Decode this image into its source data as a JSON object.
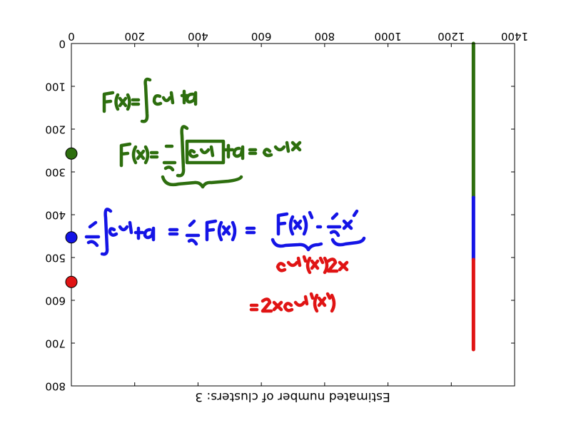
{
  "chart_data": {
    "type": "scatter",
    "title": "",
    "xlabel": "Estimated number of clusters: 3",
    "xlim": [
      0,
      1400
    ],
    "ylim": [
      800,
      0
    ],
    "y_inverted": true,
    "x_axis_position": "top",
    "x_ticks": [
      "0",
      "200",
      "400",
      "600",
      "800",
      "1000",
      "1200",
      "1400"
    ],
    "y_ticks": [
      "0",
      "100",
      "200",
      "300",
      "400",
      "500",
      "600",
      "700",
      "800"
    ],
    "grid": false,
    "legend": "none",
    "colors": {
      "green": "#2d6e0e",
      "blue": "#1414e6",
      "red": "#e01414"
    },
    "cluster_markers": [
      {
        "cluster": "green",
        "x": 0,
        "y": 257
      },
      {
        "cluster": "blue",
        "x": 0,
        "y": 453
      },
      {
        "cluster": "red",
        "x": 0,
        "y": 557
      }
    ],
    "cluster_bar": {
      "x": 1270,
      "segments": [
        {
          "cluster": "green",
          "y_start": 0,
          "y_end": 360
        },
        {
          "cluster": "blue",
          "y_start": 360,
          "y_end": 505
        },
        {
          "cluster": "red",
          "y_start": 505,
          "y_end": 715
        }
      ]
    },
    "handwriting": [
      {
        "cluster": "green",
        "text": "F(x) = ∫ cos t² dt"
      },
      {
        "cluster": "green",
        "text": "F′(x) = d/dx ∫ cos t² dt = cos² x"
      },
      {
        "cluster": "blue",
        "text": "d/dx ∫ cos t² dt = d/dx F(x²) = F′(x²) · d/dx x²"
      },
      {
        "cluster": "red",
        "text": "cos²(x²) 2x"
      },
      {
        "cluster": "red",
        "text": "= 2x cos²(x²)"
      }
    ]
  }
}
